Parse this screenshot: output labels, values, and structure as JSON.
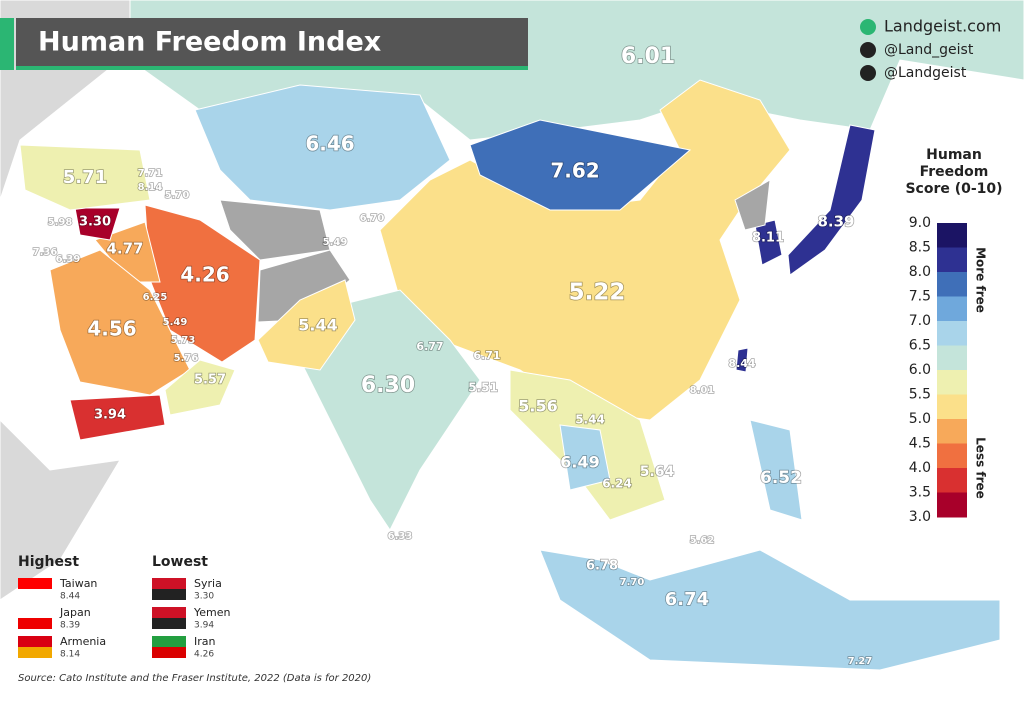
{
  "header": {
    "title": "Human Freedom Index"
  },
  "credits": [
    "Landgeist.com",
    "@Land_geist",
    "@Landgeist"
  ],
  "legend": {
    "title_lines": [
      "Human",
      "Freedom",
      "Score (0-10)"
    ],
    "ticks": [
      "9.0",
      "8.5",
      "8.0",
      "7.5",
      "7.0",
      "6.5",
      "6.0",
      "5.5",
      "5.0",
      "4.5",
      "4.0",
      "3.5",
      "3.0"
    ],
    "colors": [
      "#1b1464",
      "#2e3192",
      "#3f6fb8",
      "#6fa8dc",
      "#a9d4ea",
      "#c4e4da",
      "#eef0b0",
      "#fbe08a",
      "#f7a95a",
      "#f07040",
      "#d93030",
      "#a8002a"
    ],
    "more": "More free",
    "less": "Less free"
  },
  "map_labels": [
    "6.01",
    "6.46",
    "7.62",
    "5.71",
    "7.71",
    "8.14",
    "5.70",
    "5.98",
    "3.30",
    "6.70",
    "5.49",
    "8.11",
    "8.39",
    "7.36",
    "6.39",
    "4.77",
    "4.26",
    "5.22",
    "6.25",
    "4.56",
    "5.44",
    "5.49",
    "5.73",
    "6.77",
    "6.71",
    "8.44",
    "5.76",
    "6.30",
    "5.51",
    "8.01",
    "5.57",
    "5.56",
    "5.44",
    "3.94",
    "6.49",
    "5.64",
    "6.52",
    "6.24",
    "6.33",
    "5.62",
    "6.78",
    "7.70",
    "6.74",
    "7.27"
  ],
  "highest": {
    "title": "Highest",
    "items": [
      {
        "name": "Taiwan",
        "score": "8.44"
      },
      {
        "name": "Japan",
        "score": "8.39"
      },
      {
        "name": "Armenia",
        "score": "8.14"
      }
    ]
  },
  "lowest": {
    "title": "Lowest",
    "items": [
      {
        "name": "Syria",
        "score": "3.30"
      },
      {
        "name": "Yemen",
        "score": "3.94"
      },
      {
        "name": "Iran",
        "score": "4.26"
      }
    ]
  },
  "source": "Source: Cato Institute and the Fraser Institute, 2022 (Data is for 2020)"
}
